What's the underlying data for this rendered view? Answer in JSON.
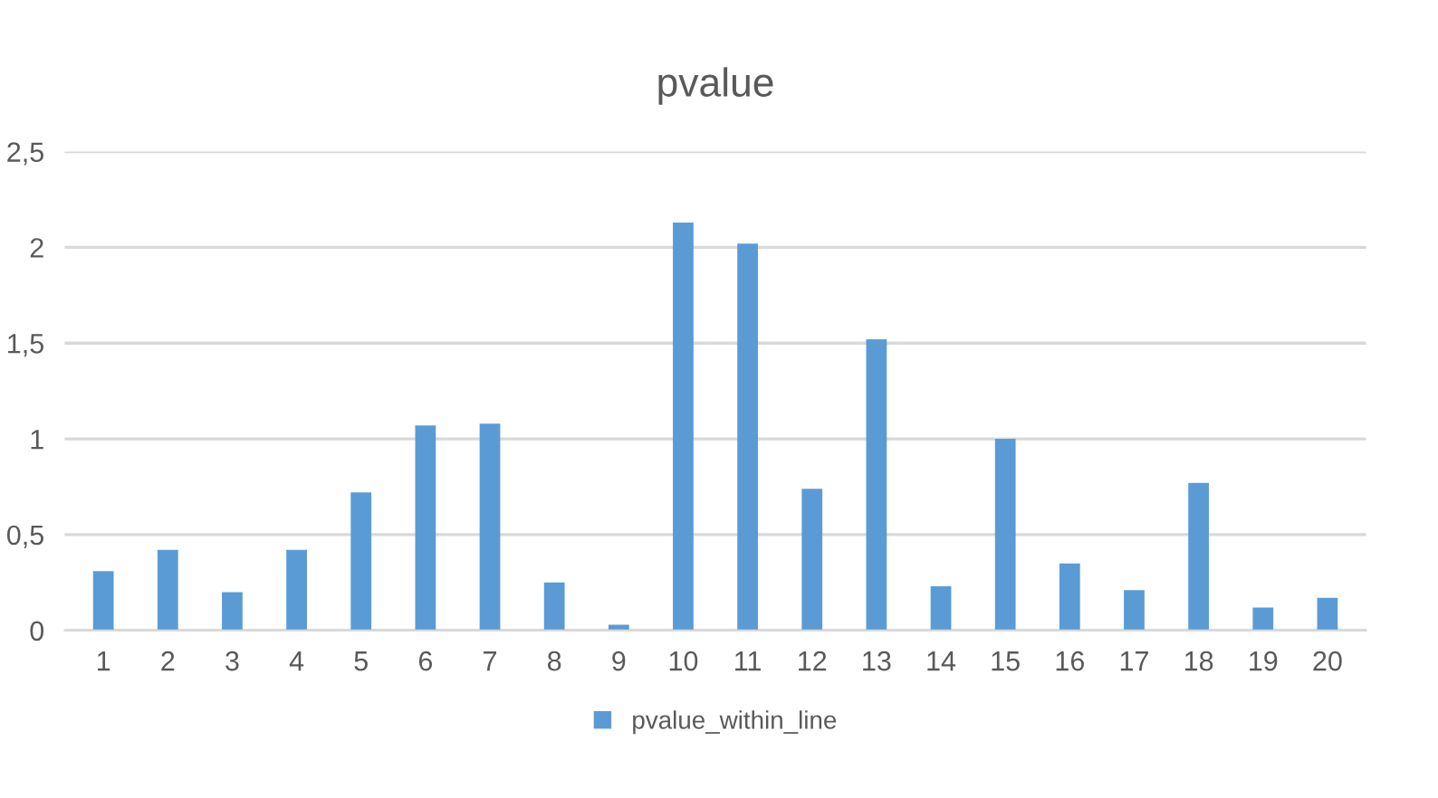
{
  "chart_data": {
    "type": "bar",
    "title": "pvalue",
    "categories": [
      "1",
      "2",
      "3",
      "4",
      "5",
      "6",
      "7",
      "8",
      "9",
      "10",
      "11",
      "12",
      "13",
      "14",
      "15",
      "16",
      "17",
      "18",
      "19",
      "20"
    ],
    "series": [
      {
        "name": "pvalue_within_line",
        "color": "#5b9bd5",
        "values": [
          0.31,
          0.42,
          0.2,
          0.42,
          0.72,
          1.07,
          1.08,
          0.25,
          0.03,
          2.13,
          2.02,
          0.74,
          1.52,
          0.23,
          1.0,
          0.35,
          0.21,
          0.77,
          0.12,
          0.17
        ]
      }
    ],
    "ylim": [
      0,
      2.5
    ],
    "yticks": [
      0,
      {
        "value": 0.5,
        "label": "0,5"
      },
      1,
      {
        "value": 1.5,
        "label": "1,5"
      },
      2,
      {
        "value": 2.5,
        "label": "2,5"
      }
    ],
    "grid": "y",
    "legend": "bottom"
  }
}
